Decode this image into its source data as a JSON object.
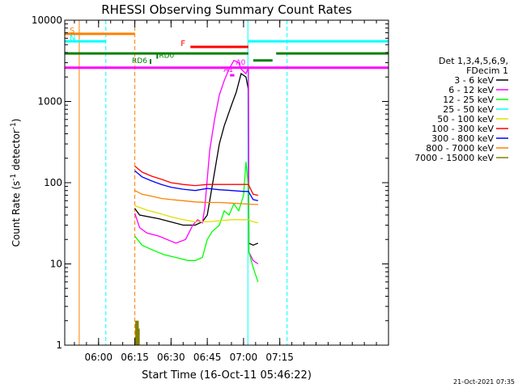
{
  "chart_data": {
    "type": "line",
    "title": "RHESSI Observing Summary Count Rates",
    "xlabel": "Start Time (16-Oct-11 05:46:22)",
    "ylabel_main": "Count Rate (s",
    "ylabel_sup1": "-1",
    "ylabel_mid": " detector",
    "ylabel_sup2": "-1",
    "ylabel_end": ")",
    "x_range_min": [
      346,
      480
    ],
    "y_log_range": [
      1,
      10000
    ],
    "x_ticks": [
      {
        "min": 360,
        "label": "06:00"
      },
      {
        "min": 375,
        "label": "06:15"
      },
      {
        "min": 390,
        "label": "06:30"
      },
      {
        "min": 405,
        "label": "06:45"
      },
      {
        "min": 420,
        "label": "07:00"
      },
      {
        "min": 435,
        "label": "07:15"
      }
    ],
    "y_ticks": [
      {
        "v": 1,
        "label": "1"
      },
      {
        "v": 10,
        "label": "10"
      },
      {
        "v": 100,
        "label": "100"
      },
      {
        "v": 1000,
        "label": "1000"
      },
      {
        "v": 10000,
        "label": "10000"
      }
    ],
    "legend": {
      "placement": "right",
      "header": [
        "Det 1,3,4,5,6,9,",
        "FDecim 1"
      ],
      "entries": [
        {
          "label": "3 - 6 keV",
          "color": "#000000"
        },
        {
          "label": "6 - 12 keV",
          "color": "#ff00ff"
        },
        {
          "label": "12 - 25 keV",
          "color": "#00ff00"
        },
        {
          "label": "25 - 50 keV",
          "color": "#00ffff"
        },
        {
          "label": "50 - 100 keV",
          "color": "#e0e000"
        },
        {
          "label": "100 - 300 keV",
          "color": "#ff0000"
        },
        {
          "label": "300 - 800 keV",
          "color": "#0000ff"
        },
        {
          "label": "800 - 7000 keV",
          "color": "#ff8000"
        },
        {
          "label": "7000 - 15000 keV",
          "color": "#808000"
        }
      ]
    },
    "series": [
      {
        "name": "3 - 6 keV",
        "color": "#000000",
        "x": [
          375,
          377,
          385,
          395,
          400,
          403,
          405,
          407,
          410,
          412,
          415,
          417,
          419,
          421,
          422,
          422.2,
          424,
          426
        ],
        "y": [
          48,
          40,
          36,
          30,
          30,
          33,
          40,
          90,
          300,
          500,
          900,
          1300,
          2200,
          2000,
          1400,
          18,
          17,
          18
        ]
      },
      {
        "name": "6 - 12 keV",
        "color": "#ff00ff",
        "x": [
          375,
          377,
          380,
          385,
          392,
          396,
          399,
          401,
          403,
          404,
          406,
          408,
          410,
          412,
          414,
          416,
          418,
          419,
          421,
          422,
          422.2,
          424,
          426
        ],
        "y": [
          42,
          28,
          24,
          22,
          18,
          20,
          30,
          35,
          32,
          50,
          250,
          600,
          1200,
          1800,
          2500,
          3200,
          3000,
          2500,
          2200,
          2600,
          14,
          11,
          10
        ]
      },
      {
        "name": "12 - 25 keV",
        "color": "#00ff00",
        "x": [
          375,
          378,
          382,
          387,
          392,
          397,
          400,
          403,
          405,
          407,
          410,
          412,
          414,
          416,
          418,
          420,
          421,
          422,
          422.2,
          424,
          426
        ],
        "y": [
          22,
          17,
          15,
          13,
          12,
          11,
          11,
          12,
          20,
          25,
          30,
          45,
          40,
          55,
          45,
          70,
          180,
          90,
          14,
          9,
          6
        ]
      },
      {
        "name": "50 - 100 keV",
        "color": "#e0e000",
        "x": [
          375,
          380,
          385,
          390,
          395,
          400,
          405,
          410,
          415,
          420,
          422,
          424,
          426
        ],
        "y": [
          52,
          46,
          42,
          38,
          35,
          33,
          33,
          34,
          35,
          35,
          35,
          33,
          32
        ]
      },
      {
        "name": "100 - 300 keV",
        "color": "#ff0000",
        "x": [
          375,
          378,
          382,
          386,
          390,
          395,
          400,
          405,
          410,
          415,
          420,
          422,
          424,
          426
        ],
        "y": [
          160,
          135,
          120,
          110,
          100,
          95,
          92,
          95,
          95,
          95,
          95,
          95,
          72,
          70
        ]
      },
      {
        "name": "300 - 800 keV",
        "color": "#0000ff",
        "x": [
          375,
          378,
          382,
          386,
          390,
          395,
          400,
          405,
          410,
          415,
          420,
          422,
          424,
          426
        ],
        "y": [
          140,
          118,
          105,
          95,
          88,
          83,
          80,
          85,
          82,
          80,
          78,
          78,
          62,
          60
        ]
      },
      {
        "name": "800 - 7000 keV",
        "color": "#ff8000",
        "x": [
          375,
          378,
          382,
          386,
          390,
          395,
          400,
          405,
          410,
          415,
          420,
          424,
          426
        ],
        "y": [
          80,
          72,
          68,
          64,
          62,
          60,
          58,
          57,
          57,
          56,
          55,
          54,
          54
        ]
      }
    ],
    "attenuator_bars": [
      {
        "label": "A1",
        "color": "#ff00ff",
        "x0": 414.4,
        "x1": 416.2,
        "v": 2100
      },
      {
        "label": "A0",
        "color": "#ff00ff",
        "x0": 419.5,
        "x1": 422.1,
        "v": 2600
      }
    ],
    "state_bars": [
      {
        "label": "S",
        "color": "#ff8000",
        "x0": 346,
        "x1": 375,
        "v": 6800
      },
      {
        "label": "N",
        "color": "#00ffff",
        "x0": 346,
        "x1": 363,
        "v": 5500
      },
      {
        "label": "",
        "color": "#00ffff",
        "x0": 421.8,
        "x1": 480,
        "v": 5500
      },
      {
        "label": "F",
        "color": "#ff0000",
        "x0": 398,
        "x1": 422,
        "v": 4700
      },
      {
        "label": "",
        "color": "#008000",
        "x0": 346,
        "x1": 422,
        "v": 3900
      },
      {
        "label": "",
        "color": "#008000",
        "x0": 433.5,
        "x1": 480,
        "v": 3900
      },
      {
        "label": "",
        "color": "#008000",
        "x0": 424,
        "x1": 432,
        "v": 3200
      },
      {
        "label": "",
        "color": "#ff00ff",
        "x0": 346,
        "x1": 480,
        "v": 2600
      }
    ],
    "markers": [
      {
        "label": "RD0",
        "color": "#008000",
        "x": 384.3,
        "v": 3600
      },
      {
        "label": "RD6",
        "color": "#008000",
        "x": 381.5,
        "v": 3100
      }
    ],
    "vlines": [
      {
        "x": 346,
        "color": "#00ffff",
        "dashed": false
      },
      {
        "x": 352,
        "color": "#ff8000",
        "dashed": false
      },
      {
        "x": 363,
        "color": "#00ffff",
        "dashed": true
      },
      {
        "x": 375,
        "color": "#ff8000",
        "dashed": true
      },
      {
        "x": 421.8,
        "color": "#00ffff",
        "dashed": false
      },
      {
        "x": 438,
        "color": "#00ffff",
        "dashed": true
      }
    ],
    "olive_spikes": [
      {
        "x": 375.5,
        "v": 2
      },
      {
        "x": 375.9,
        "v": 2
      },
      {
        "x": 376.3,
        "v": 2
      },
      {
        "x": 376.7,
        "v": 1.6
      }
    ],
    "footer_date": "21-Oct-2021 07:35"
  }
}
